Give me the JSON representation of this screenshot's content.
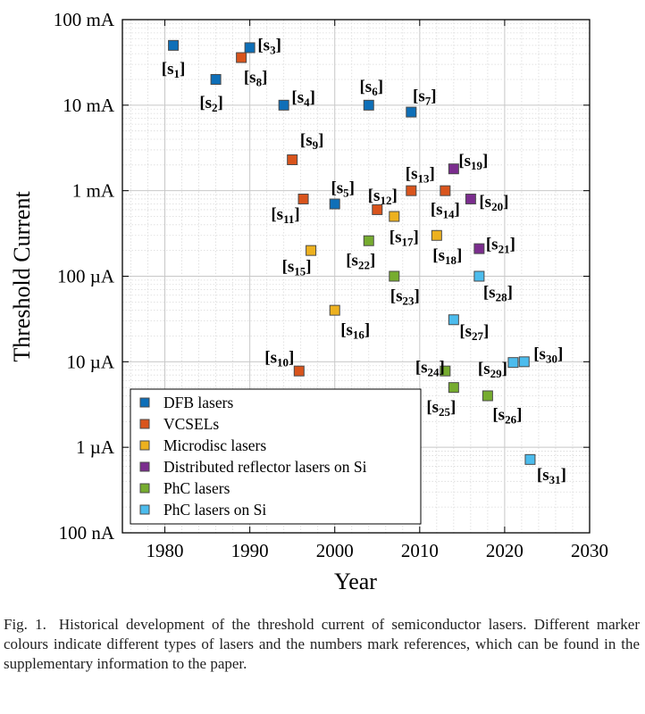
{
  "chart_data": {
    "type": "scatter",
    "xlabel": "Year",
    "ylabel": "Threshold Current",
    "xlim": [
      1975,
      2030
    ],
    "x_ticks": [
      1980,
      1990,
      2000,
      2010,
      2020,
      2030
    ],
    "y_log_range_amps": [
      1e-07,
      0.1
    ],
    "y_ticks": [
      {
        "value": 0.1,
        "label": "100 mA"
      },
      {
        "value": 0.01,
        "label": "10 mA"
      },
      {
        "value": 0.001,
        "label": "1 mA"
      },
      {
        "value": 0.0001,
        "label": "100 µA"
      },
      {
        "value": 1e-05,
        "label": "10 µA"
      },
      {
        "value": 1e-06,
        "label": "1 µA"
      },
      {
        "value": 1e-07,
        "label": "100 nA"
      }
    ],
    "grid": true,
    "legend_position": "bottom-left",
    "series": [
      {
        "name": "DFB lasers",
        "color": "#0e6fb8",
        "points": [
          {
            "x": 1981,
            "y": 0.05,
            "ref": "s1"
          },
          {
            "x": 1986,
            "y": 0.02,
            "ref": "s2"
          },
          {
            "x": 1990,
            "y": 0.047,
            "ref": "s3"
          },
          {
            "x": 1994,
            "y": 0.01,
            "ref": "s4"
          },
          {
            "x": 2000,
            "y": 0.0007,
            "ref": "s5"
          },
          {
            "x": 2004,
            "y": 0.01,
            "ref": "s6"
          },
          {
            "x": 2009,
            "y": 0.0083,
            "ref": "s7"
          }
        ]
      },
      {
        "name": "VCSELs",
        "color": "#d9541c",
        "points": [
          {
            "x": 1989,
            "y": 0.036,
            "ref": "s8"
          },
          {
            "x": 1995,
            "y": 0.0023,
            "ref": "s9"
          },
          {
            "x": 1995.8,
            "y": 7.8e-06,
            "ref": "s10"
          },
          {
            "x": 1996.3,
            "y": 0.0008,
            "ref": "s11"
          },
          {
            "x": 2005,
            "y": 0.0006,
            "ref": "s12"
          },
          {
            "x": 2009,
            "y": 0.001,
            "ref": "s13"
          },
          {
            "x": 2013,
            "y": 0.001,
            "ref": "s14"
          }
        ]
      },
      {
        "name": "Microdisc lasers",
        "color": "#edb11f",
        "points": [
          {
            "x": 1997.2,
            "y": 0.0002,
            "ref": "s15"
          },
          {
            "x": 2000,
            "y": 4e-05,
            "ref": "s16"
          },
          {
            "x": 2007,
            "y": 0.0005,
            "ref": "s17"
          },
          {
            "x": 2012,
            "y": 0.0003,
            "ref": "s18"
          }
        ]
      },
      {
        "name": "Distributed reflector lasers on Si",
        "color": "#7b2d8e",
        "points": [
          {
            "x": 2014,
            "y": 0.0018,
            "ref": "s19"
          },
          {
            "x": 2016,
            "y": 0.0008,
            "ref": "s20"
          },
          {
            "x": 2017,
            "y": 0.00021,
            "ref": "s21"
          }
        ]
      },
      {
        "name": "PhC lasers",
        "color": "#76ac2f",
        "points": [
          {
            "x": 2004,
            "y": 0.00026,
            "ref": "s22"
          },
          {
            "x": 2007,
            "y": 0.0001,
            "ref": "s23"
          },
          {
            "x": 2013,
            "y": 7.8e-06,
            "ref": "s24"
          },
          {
            "x": 2014,
            "y": 5e-06,
            "ref": "s25"
          },
          {
            "x": 2018,
            "y": 4e-06,
            "ref": "s26"
          }
        ]
      },
      {
        "name": "PhC lasers on Si",
        "color": "#4cbced",
        "points": [
          {
            "x": 2014,
            "y": 3.1e-05,
            "ref": "s27"
          },
          {
            "x": 2017,
            "y": 0.0001,
            "ref": "s28"
          },
          {
            "x": 2021,
            "y": 9.8e-06,
            "ref": "s29"
          },
          {
            "x": 2022.3,
            "y": 1e-05,
            "ref": "s30"
          },
          {
            "x": 2023,
            "y": 7.2e-07,
            "ref": "s31"
          }
        ]
      }
    ]
  },
  "caption": {
    "label": "Fig. 1.",
    "text": "Historical development of the threshold current of semiconductor lasers. Different marker colours indicate different types of lasers and the numbers mark references, which can be found in the supplementary information to the paper."
  }
}
